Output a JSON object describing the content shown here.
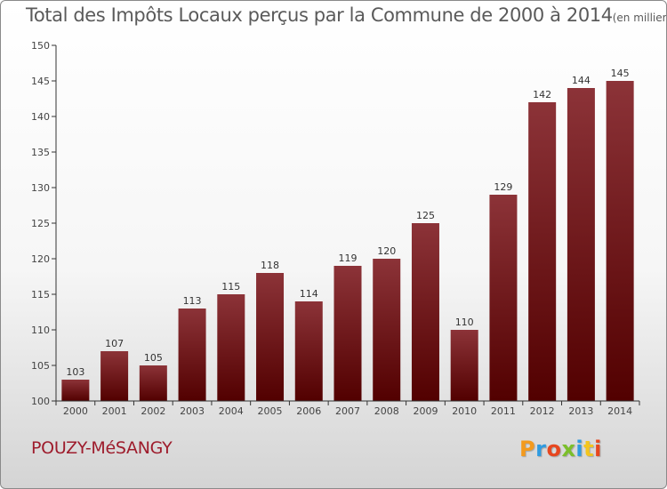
{
  "chart_data": {
    "type": "bar",
    "title": "Total des Impôts Locaux perçus par la Commune de 2000 à 2014",
    "unit_note": "(en milliers d'€)",
    "categories": [
      "2000",
      "2001",
      "2002",
      "2003",
      "2004",
      "2005",
      "2006",
      "2007",
      "2008",
      "2009",
      "2010",
      "2011",
      "2012",
      "2013",
      "2014"
    ],
    "values": [
      103,
      107,
      105,
      113,
      115,
      118,
      114,
      119,
      120,
      125,
      110,
      129,
      142,
      144,
      145
    ],
    "ylim": [
      100,
      150
    ],
    "yticks": [
      100,
      105,
      110,
      115,
      120,
      125,
      130,
      135,
      140,
      145,
      150
    ],
    "xlabel": "",
    "ylabel": "",
    "grid": false,
    "colors": {
      "bar_top": "#8c3338",
      "bar_bottom": "#520000",
      "axis": "#333333"
    }
  },
  "footer": {
    "commune": "POUZY-MéSANGY",
    "brand": "Proxiti",
    "brand_colors": [
      "#f39a1e",
      "#2f9be0",
      "#e7471f",
      "#7bbf2a",
      "#2f9be0",
      "#f3c51e",
      "#e7471f"
    ]
  }
}
